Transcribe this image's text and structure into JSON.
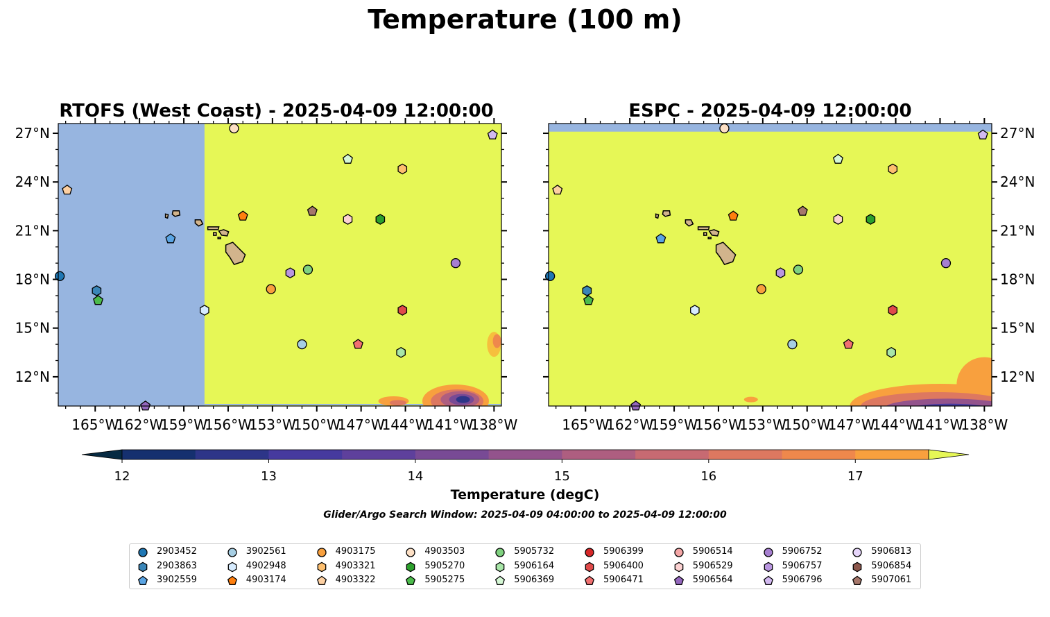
{
  "suptitle": "Temperature (100 m)",
  "panels": [
    {
      "title": "RTOFS (West Coast) - 2025-04-09 12:00:00"
    },
    {
      "title": "ESPC - 2025-04-09 12:00:00"
    }
  ],
  "colorbar": {
    "label": "Temperature (degC)",
    "ticks": [
      "12",
      "13",
      "14",
      "15",
      "16",
      "17"
    ],
    "range": [
      11.75,
      17.75
    ],
    "extend": "both"
  },
  "search_window": "Glider/Argo Search Window: 2025-04-09 04:00:00 to 2025-04-09 12:00:00",
  "colors": {
    "warm_field": "#e6f756",
    "land_mask": "#97b5e0",
    "land": "#d2b48c",
    "colorbar_levels": [
      "#062a42",
      "#15306f",
      "#2d3588",
      "#463a9e",
      "#5e409c",
      "#784a95",
      "#93538c",
      "#ae5e80",
      "#c76a72",
      "#dd7860",
      "#ef884c",
      "#f8a03e",
      "#f6bf3d",
      "#e6f756"
    ]
  },
  "chart_data": [
    {
      "type": "scatter",
      "title": "RTOFS (West Coast) - 2025-04-09 12:00:00",
      "xlim": [
        -167.5,
        -137.5
      ],
      "ylim": [
        10.2,
        27.6
      ],
      "xticks": [
        "165°W",
        "162°W",
        "159°W",
        "156°W",
        "153°W",
        "150°W",
        "147°W",
        "144°W",
        "141°W",
        "138°W"
      ],
      "yticks": [
        "12°N",
        "15°N",
        "18°N",
        "21°N",
        "24°N",
        "27°N"
      ],
      "ytick_side": "left"
    },
    {
      "type": "scatter",
      "title": "ESPC - 2025-04-09 12:00:00",
      "xlim": [
        -167.5,
        -137.5
      ],
      "ylim": [
        10.2,
        27.6
      ],
      "xticks": [
        "165°W",
        "162°W",
        "159°W",
        "156°W",
        "153°W",
        "150°W",
        "147°W",
        "144°W",
        "141°W",
        "138°W"
      ],
      "yticks": [
        "12°N",
        "15°N",
        "18°N",
        "21°N",
        "24°N",
        "27°N"
      ],
      "ytick_side": "right"
    }
  ],
  "floats": [
    {
      "id": "2903452",
      "marker": "circle",
      "color": "#1f77b4",
      "lon": -167.4,
      "lat": 18.2
    },
    {
      "id": "2903863",
      "marker": "hexagon",
      "color": "#3a86b8",
      "lon": -164.9,
      "lat": 17.3
    },
    {
      "id": "3902559",
      "marker": "pentagon",
      "color": "#5aa4e3",
      "lon": -159.9,
      "lat": 20.5
    },
    {
      "id": "3902561",
      "marker": "circle",
      "color": "#a6cee3",
      "lon": -151.0,
      "lat": 14.0
    },
    {
      "id": "4902948",
      "marker": "hexagon",
      "color": "#d7ecff",
      "lon": -157.6,
      "lat": 16.1
    },
    {
      "id": "4903174",
      "marker": "pentagon",
      "color": "#ff7f0e",
      "lon": -155.0,
      "lat": 21.9
    },
    {
      "id": "4903175",
      "marker": "circle",
      "color": "#f8a03e",
      "lon": -153.1,
      "lat": 17.4
    },
    {
      "id": "4903321",
      "marker": "hexagon",
      "color": "#fdbf6f",
      "lon": -144.2,
      "lat": 24.8
    },
    {
      "id": "4903322",
      "marker": "pentagon",
      "color": "#fdd0a2",
      "lon": -166.9,
      "lat": 23.5
    },
    {
      "id": "4903503",
      "marker": "circle",
      "color": "#fde0c5",
      "lon": -155.6,
      "lat": 27.3
    },
    {
      "id": "5905270",
      "marker": "hexagon",
      "color": "#2ca02c",
      "lon": -145.7,
      "lat": 21.7
    },
    {
      "id": "5905275",
      "marker": "pentagon",
      "color": "#4cbb4c",
      "lon": -164.8,
      "lat": 16.7
    },
    {
      "id": "5905732",
      "marker": "circle",
      "color": "#7fd17f",
      "lon": -150.6,
      "lat": 18.6
    },
    {
      "id": "5906164",
      "marker": "hexagon",
      "color": "#a8e6a8",
      "lon": -144.3,
      "lat": 13.5
    },
    {
      "id": "5906369",
      "marker": "pentagon",
      "color": "#d5f7d5",
      "lon": -147.9,
      "lat": 25.4
    },
    {
      "id": "5906399",
      "marker": "circle",
      "color": "#d62728",
      "lon": null,
      "lat": null
    },
    {
      "id": "5906400",
      "marker": "hexagon",
      "color": "#e04a4a",
      "lon": -144.2,
      "lat": 16.1
    },
    {
      "id": "5906471",
      "marker": "pentagon",
      "color": "#f07070",
      "lon": -147.2,
      "lat": 14.0
    },
    {
      "id": "5906514",
      "marker": "circle",
      "color": "#f4a6a6",
      "lon": null,
      "lat": null
    },
    {
      "id": "5906529",
      "marker": "hexagon",
      "color": "#fcd2d2",
      "lon": -147.9,
      "lat": 21.7
    },
    {
      "id": "5906564",
      "marker": "pentagon",
      "color": "#9467bd",
      "lon": -161.6,
      "lat": 10.2
    },
    {
      "id": "5906752",
      "marker": "circle",
      "color": "#a67fd0",
      "lon": -140.6,
      "lat": 19.0
    },
    {
      "id": "5906757",
      "marker": "hexagon",
      "color": "#b996e0",
      "lon": -151.8,
      "lat": 18.4
    },
    {
      "id": "5906796",
      "marker": "pentagon",
      "color": "#d2b9f0",
      "lon": -138.1,
      "lat": 26.9
    },
    {
      "id": "5906813",
      "marker": "circle",
      "color": "#e6d5fa",
      "lon": null,
      "lat": null
    },
    {
      "id": "5906854",
      "marker": "hexagon",
      "color": "#8c564b",
      "lon": null,
      "lat": null
    },
    {
      "id": "5907061",
      "marker": "pentagon",
      "color": "#a6776b",
      "lon": -150.3,
      "lat": 22.2
    }
  ],
  "islands": [
    {
      "name": "Niihau",
      "lon": -160.15,
      "lat": 21.9
    },
    {
      "name": "Kauai",
      "lon": -159.5,
      "lat": 22.05
    },
    {
      "name": "Oahu",
      "lon": -158.0,
      "lat": 21.5
    },
    {
      "name": "Molokai",
      "lon": -157.0,
      "lat": 21.15
    },
    {
      "name": "Lanai",
      "lon": -156.9,
      "lat": 20.8
    },
    {
      "name": "Maui",
      "lon": -156.3,
      "lat": 20.85
    },
    {
      "name": "Kahoolawe",
      "lon": -156.6,
      "lat": 20.55
    },
    {
      "name": "Hawaii",
      "lon": -155.5,
      "lat": 19.6
    }
  ]
}
